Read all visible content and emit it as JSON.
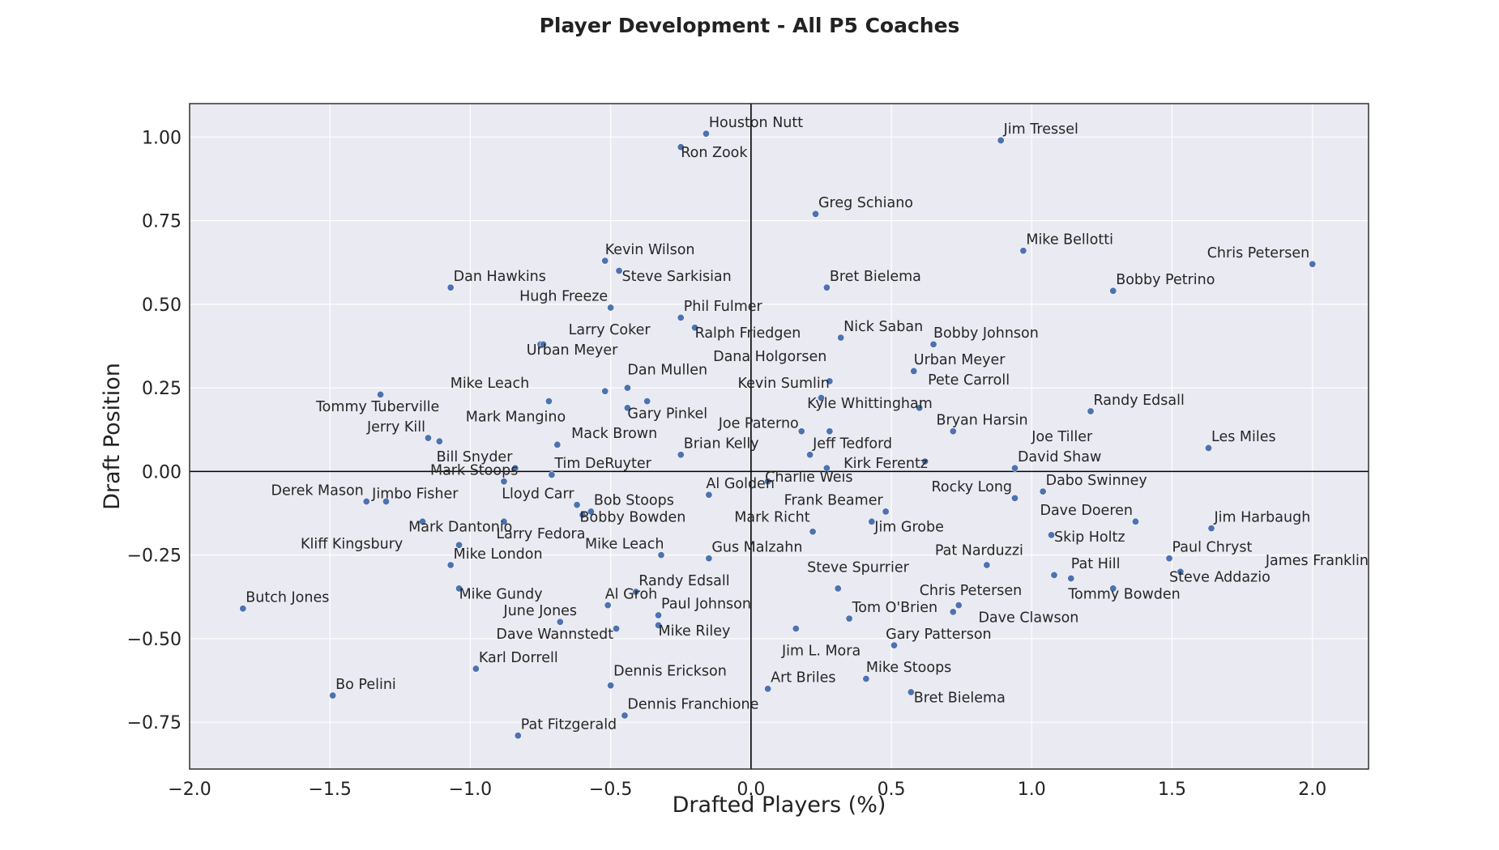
{
  "chart_data": {
    "type": "scatter",
    "title": "Player Development - All P5 Coaches",
    "xlabel": "Drafted Players (%)",
    "ylabel": "Draft Position",
    "xlim": [
      -2.0,
      2.2
    ],
    "ylim": [
      -0.89,
      1.1
    ],
    "xticks": [
      "−2.0",
      "−1.5",
      "−1.0",
      "−0.5",
      "0.0",
      "0.5",
      "1.0",
      "1.5",
      "2.0"
    ],
    "yticks": [
      "−0.75",
      "−0.50",
      "−0.25",
      "0.00",
      "0.25",
      "0.50",
      "0.75",
      "1.00"
    ],
    "grid": true,
    "reference_lines": {
      "x": 0,
      "y": 0
    },
    "background": "#eaeaf2",
    "marker_color": "#4c72b0",
    "points": [
      {
        "name": "Houston Nutt",
        "x": -0.16,
        "y": 1.01
      },
      {
        "name": "Ron Zook",
        "x": -0.25,
        "y": 0.97
      },
      {
        "name": "Jim Tressel",
        "x": 0.89,
        "y": 0.99
      },
      {
        "name": "Greg Schiano",
        "x": 0.23,
        "y": 0.77
      },
      {
        "name": "Mike Bellotti",
        "x": 0.97,
        "y": 0.66
      },
      {
        "name": "Chris Petersen",
        "x": 2.0,
        "y": 0.62
      },
      {
        "name": "Bobby Petrino",
        "x": 1.29,
        "y": 0.54
      },
      {
        "name": "Kevin Wilson",
        "x": -0.52,
        "y": 0.63
      },
      {
        "name": "Steve Sarkisian",
        "x": -0.47,
        "y": 0.6
      },
      {
        "name": "Dan Hawkins",
        "x": -1.07,
        "y": 0.55
      },
      {
        "name": "Bret Bielema",
        "x": 0.27,
        "y": 0.55
      },
      {
        "name": "Hugh Freeze",
        "x": -0.5,
        "y": 0.49
      },
      {
        "name": "Phil Fulmer",
        "x": -0.25,
        "y": 0.46
      },
      {
        "name": "Ralph Friedgen",
        "x": -0.2,
        "y": 0.43
      },
      {
        "name": "Nick Saban",
        "x": 0.32,
        "y": 0.4
      },
      {
        "name": "Bobby Johnson",
        "x": 0.65,
        "y": 0.38
      },
      {
        "name": "Larry Coker",
        "x": -0.75,
        "y": 0.38
      },
      {
        "name": "Urban Meyer",
        "x": -0.74,
        "y": 0.38
      },
      {
        "name": "Urban Meyer",
        "x": 0.58,
        "y": 0.3
      },
      {
        "name": "Dana Holgorsen",
        "x": 0.28,
        "y": 0.27
      },
      {
        "name": "Dan Mullen",
        "x": -0.44,
        "y": 0.25
      },
      {
        "name": "Pete Carroll",
        "x": 0.6,
        "y": 0.19
      },
      {
        "name": "Kevin Sumlin",
        "x": 0.25,
        "y": 0.22
      },
      {
        "name": "Mike Leach",
        "x": -0.72,
        "y": 0.21
      },
      {
        "name": "Tommy Tuberville",
        "x": -1.32,
        "y": 0.23
      },
      {
        "name": "Randy Edsall",
        "x": 1.21,
        "y": 0.18
      },
      {
        "name": "Kyle Whittingham",
        "x": 0.28,
        "y": 0.12
      },
      {
        "name": "Gary Pinkel",
        "x": -0.44,
        "y": 0.19
      },
      {
        "name": "Mark Mangino",
        "x": -0.52,
        "y": 0.24
      },
      {
        "name": "Unlabeled 1",
        "x": -0.37,
        "y": 0.21
      },
      {
        "name": "Joe Paterno",
        "x": 0.18,
        "y": 0.12
      },
      {
        "name": "Bryan Harsin",
        "x": 0.72,
        "y": 0.12
      },
      {
        "name": "Jerry Kill",
        "x": -1.15,
        "y": 0.1
      },
      {
        "name": "Unlabeled 2",
        "x": -1.11,
        "y": 0.09
      },
      {
        "name": "Mack Brown",
        "x": -0.69,
        "y": 0.08
      },
      {
        "name": "Jeff Tedford",
        "x": 0.21,
        "y": 0.05
      },
      {
        "name": "Brian Kelly",
        "x": -0.25,
        "y": 0.05
      },
      {
        "name": "Joe Tiller",
        "x": 0.62,
        "y": 0.03
      },
      {
        "name": "Les Miles",
        "x": 1.63,
        "y": 0.07
      },
      {
        "name": "Bill Snyder",
        "x": -0.84,
        "y": 0.01
      },
      {
        "name": "Tim DeRuyter",
        "x": -0.71,
        "y": -0.01
      },
      {
        "name": "Kirk Ferentz",
        "x": 0.27,
        "y": 0.01
      },
      {
        "name": "David Shaw",
        "x": 0.94,
        "y": 0.01
      },
      {
        "name": "Charlie Weis",
        "x": 0.06,
        "y": -0.03
      },
      {
        "name": "Mark Stoops",
        "x": -0.88,
        "y": -0.03
      },
      {
        "name": "Derek Mason",
        "x": -1.37,
        "y": -0.09
      },
      {
        "name": "Jimbo Fisher",
        "x": -1.3,
        "y": -0.09
      },
      {
        "name": "Lloyd Carr",
        "x": -0.62,
        "y": -0.1
      },
      {
        "name": "Bob Stoops",
        "x": -0.57,
        "y": -0.12
      },
      {
        "name": "Al Golden",
        "x": -0.15,
        "y": -0.07
      },
      {
        "name": "Rocky Long",
        "x": 0.94,
        "y": -0.08
      },
      {
        "name": "Dabo Swinney",
        "x": 1.04,
        "y": -0.06
      },
      {
        "name": "Frank Beamer",
        "x": 0.48,
        "y": -0.12
      },
      {
        "name": "Bobby Bowden",
        "x": -0.6,
        "y": -0.13
      },
      {
        "name": "Dave Doeren",
        "x": 1.37,
        "y": -0.15
      },
      {
        "name": "Jim Grobe",
        "x": 0.43,
        "y": -0.15
      },
      {
        "name": "Mark Dantonio",
        "x": -1.17,
        "y": -0.15
      },
      {
        "name": "Unlabeled 3",
        "x": -0.88,
        "y": -0.15
      },
      {
        "name": "Mark Richt",
        "x": 0.22,
        "y": -0.18
      },
      {
        "name": "Jim Harbaugh",
        "x": 1.64,
        "y": -0.17
      },
      {
        "name": "Skip Holtz",
        "x": 1.07,
        "y": -0.19
      },
      {
        "name": "Larry Fedora",
        "x": -1.04,
        "y": -0.22
      },
      {
        "name": "Kliff Kingsbury",
        "x": -1.07,
        "y": -0.28
      },
      {
        "name": "Mike Leach",
        "x": -0.32,
        "y": -0.25
      },
      {
        "name": "Gus Malzahn",
        "x": -0.15,
        "y": -0.26
      },
      {
        "name": "Paul Chryst",
        "x": 1.49,
        "y": -0.26
      },
      {
        "name": "Pat Narduzzi",
        "x": 0.84,
        "y": -0.28
      },
      {
        "name": "Mike London",
        "x": -1.07,
        "y": -0.28
      },
      {
        "name": "James Franklin",
        "x": 1.53,
        "y": -0.3
      },
      {
        "name": "Pat Hill",
        "x": 1.08,
        "y": -0.31
      },
      {
        "name": "Steve Addazio",
        "x": 1.14,
        "y": -0.32
      },
      {
        "name": "Mike Gundy",
        "x": -1.04,
        "y": -0.35
      },
      {
        "name": "Steve Spurrier",
        "x": 0.31,
        "y": -0.35
      },
      {
        "name": "Tommy Bowden",
        "x": 1.29,
        "y": -0.35
      },
      {
        "name": "Randy Edsall",
        "x": -0.41,
        "y": -0.36
      },
      {
        "name": "Chris Petersen",
        "x": 0.74,
        "y": -0.4
      },
      {
        "name": "Al Groh",
        "x": -0.51,
        "y": -0.4
      },
      {
        "name": "Dave Clawson",
        "x": 0.72,
        "y": -0.42
      },
      {
        "name": "Paul Johnson",
        "x": -0.33,
        "y": -0.43
      },
      {
        "name": "Tom O'Brien",
        "x": 0.35,
        "y": -0.44
      },
      {
        "name": "June Jones",
        "x": -0.68,
        "y": -0.45
      },
      {
        "name": "Mike Riley",
        "x": -0.33,
        "y": -0.46
      },
      {
        "name": "Jim L. Mora",
        "x": 0.16,
        "y": -0.47
      },
      {
        "name": "Dave Wannstedt",
        "x": -0.48,
        "y": -0.47
      },
      {
        "name": "Gary Patterson",
        "x": 0.51,
        "y": -0.52
      },
      {
        "name": "Karl Dorrell",
        "x": -0.98,
        "y": -0.59
      },
      {
        "name": "Mike Stoops",
        "x": 0.41,
        "y": -0.62
      },
      {
        "name": "Dennis Erickson",
        "x": -0.5,
        "y": -0.64
      },
      {
        "name": "Art Briles",
        "x": 0.06,
        "y": -0.65
      },
      {
        "name": "Bret Bielema",
        "x": 0.57,
        "y": -0.66
      },
      {
        "name": "Bo Pelini",
        "x": -1.49,
        "y": -0.67
      },
      {
        "name": "Butch Jones",
        "x": -1.81,
        "y": -0.41
      },
      {
        "name": "Dennis Franchione",
        "x": -0.45,
        "y": -0.73
      },
      {
        "name": "Pat Fitzgerald",
        "x": -0.83,
        "y": -0.79
      }
    ],
    "labels": [
      {
        "text": "Houston Nutt",
        "x": -0.15,
        "y": 1.03,
        "anchor": "start"
      },
      {
        "text": "Ron Zook",
        "x": -0.25,
        "y": 0.94,
        "anchor": "start"
      },
      {
        "text": "Jim Tressel",
        "x": 0.9,
        "y": 1.01,
        "anchor": "start"
      },
      {
        "text": "Greg Schiano",
        "x": 0.24,
        "y": 0.79,
        "anchor": "start"
      },
      {
        "text": "Mike Bellotti",
        "x": 0.98,
        "y": 0.68,
        "anchor": "start"
      },
      {
        "text": "Chris Petersen",
        "x": 1.99,
        "y": 0.64,
        "anchor": "end"
      },
      {
        "text": "Bobby Petrino",
        "x": 1.3,
        "y": 0.56,
        "anchor": "start"
      },
      {
        "text": "Kevin Wilson",
        "x": -0.52,
        "y": 0.65,
        "anchor": "start"
      },
      {
        "text": "Steve Sarkisian",
        "x": -0.46,
        "y": 0.57,
        "anchor": "start"
      },
      {
        "text": "Dan Hawkins",
        "x": -1.06,
        "y": 0.57,
        "anchor": "start"
      },
      {
        "text": "Bret Bielema",
        "x": 0.28,
        "y": 0.57,
        "anchor": "start"
      },
      {
        "text": "Hugh Freeze",
        "x": -0.51,
        "y": 0.51,
        "anchor": "end"
      },
      {
        "text": "Phil Fulmer",
        "x": -0.24,
        "y": 0.48,
        "anchor": "start"
      },
      {
        "text": "Ralph Friedgen",
        "x": -0.2,
        "y": 0.4,
        "anchor": "start"
      },
      {
        "text": "Nick Saban",
        "x": 0.33,
        "y": 0.42,
        "anchor": "start"
      },
      {
        "text": "Bobby Johnson",
        "x": 0.65,
        "y": 0.4,
        "anchor": "start"
      },
      {
        "text": "Larry Coker",
        "x": -0.65,
        "y": 0.41,
        "anchor": "start"
      },
      {
        "text": "Urban Meyer",
        "x": -0.8,
        "y": 0.35,
        "anchor": "start"
      },
      {
        "text": "Urban Meyer",
        "x": 0.58,
        "y": 0.32,
        "anchor": "start"
      },
      {
        "text": "Dana Holgorsen",
        "x": 0.27,
        "y": 0.33,
        "anchor": "end"
      },
      {
        "text": "Dan Mullen",
        "x": -0.44,
        "y": 0.29,
        "anchor": "start"
      },
      {
        "text": "Pete Carroll",
        "x": 0.63,
        "y": 0.26,
        "anchor": "start"
      },
      {
        "text": "Kevin Sumlin",
        "x": 0.28,
        "y": 0.25,
        "anchor": "end"
      },
      {
        "text": "Mike Leach",
        "x": -0.79,
        "y": 0.25,
        "anchor": "end"
      },
      {
        "text": "Tommy Tuberville",
        "x": -1.11,
        "y": 0.18,
        "anchor": "end"
      },
      {
        "text": "Randy Edsall",
        "x": 1.22,
        "y": 0.2,
        "anchor": "start"
      },
      {
        "text": "Kyle Whittingham",
        "x": 0.2,
        "y": 0.19,
        "anchor": "start"
      },
      {
        "text": "Gary Pinkel",
        "x": -0.44,
        "y": 0.16,
        "anchor": "start"
      },
      {
        "text": "Mark Mangino",
        "x": -0.66,
        "y": 0.15,
        "anchor": "end"
      },
      {
        "text": "Joe Paterno",
        "x": 0.17,
        "y": 0.13,
        "anchor": "end"
      },
      {
        "text": "Bryan Harsin",
        "x": 0.66,
        "y": 0.14,
        "anchor": "start"
      },
      {
        "text": "Jerry Kill",
        "x": -1.16,
        "y": 0.12,
        "anchor": "end"
      },
      {
        "text": "Mack Brown",
        "x": -0.64,
        "y": 0.1,
        "anchor": "start"
      },
      {
        "text": "Jeff Tedford",
        "x": 0.22,
        "y": 0.07,
        "anchor": "start"
      },
      {
        "text": "Brian Kelly",
        "x": -0.24,
        "y": 0.07,
        "anchor": "start"
      },
      {
        "text": "Joe Tiller",
        "x": 1.0,
        "y": 0.09,
        "anchor": "start"
      },
      {
        "text": "Les Miles",
        "x": 1.64,
        "y": 0.09,
        "anchor": "start"
      },
      {
        "text": "Bill Snyder",
        "x": -0.85,
        "y": 0.03,
        "anchor": "end"
      },
      {
        "text": "Tim DeRuyter",
        "x": -0.7,
        "y": 0.01,
        "anchor": "start"
      },
      {
        "text": "Kirk Ferentz",
        "x": 0.33,
        "y": 0.01,
        "anchor": "start"
      },
      {
        "text": "David Shaw",
        "x": 0.95,
        "y": 0.03,
        "anchor": "start"
      },
      {
        "text": "Charlie Weis",
        "x": 0.05,
        "y": -0.03,
        "anchor": "start"
      },
      {
        "text": "Mark Stoops",
        "x": -0.83,
        "y": -0.01,
        "anchor": "end"
      },
      {
        "text": "Derek Mason",
        "x": -1.38,
        "y": -0.07,
        "anchor": "end"
      },
      {
        "text": "Jimbo Fisher",
        "x": -1.35,
        "y": -0.08,
        "anchor": "start"
      },
      {
        "text": "Lloyd Carr",
        "x": -0.63,
        "y": -0.08,
        "anchor": "end"
      },
      {
        "text": "Bob Stoops",
        "x": -0.56,
        "y": -0.1,
        "anchor": "start"
      },
      {
        "text": "Al Golden",
        "x": -0.16,
        "y": -0.05,
        "anchor": "start"
      },
      {
        "text": "Rocky Long",
        "x": 0.93,
        "y": -0.06,
        "anchor": "end"
      },
      {
        "text": "Dabo Swinney",
        "x": 1.05,
        "y": -0.04,
        "anchor": "start"
      },
      {
        "text": "Frank Beamer",
        "x": 0.47,
        "y": -0.1,
        "anchor": "end"
      },
      {
        "text": "Bobby Bowden",
        "x": -0.61,
        "y": -0.15,
        "anchor": "start"
      },
      {
        "text": "Dave Doeren",
        "x": 1.36,
        "y": -0.13,
        "anchor": "end"
      },
      {
        "text": "Jim Grobe",
        "x": 0.44,
        "y": -0.18,
        "anchor": "start"
      },
      {
        "text": "Mark Dantonio",
        "x": -0.85,
        "y": -0.18,
        "anchor": "end"
      },
      {
        "text": "Mark Richt",
        "x": 0.21,
        "y": -0.15,
        "anchor": "end"
      },
      {
        "text": "Jim Harbaugh",
        "x": 1.65,
        "y": -0.15,
        "anchor": "start"
      },
      {
        "text": "Skip Holtz",
        "x": 1.08,
        "y": -0.21,
        "anchor": "start"
      },
      {
        "text": "Larry Fedora",
        "x": -0.59,
        "y": -0.2,
        "anchor": "end"
      },
      {
        "text": "Kliff Kingsbury",
        "x": -1.24,
        "y": -0.23,
        "anchor": "end"
      },
      {
        "text": "Mike Leach",
        "x": -0.31,
        "y": -0.23,
        "anchor": "end"
      },
      {
        "text": "Gus Malzahn",
        "x": -0.14,
        "y": -0.24,
        "anchor": "start"
      },
      {
        "text": "Paul Chryst",
        "x": 1.5,
        "y": -0.24,
        "anchor": "start"
      },
      {
        "text": "Pat Narduzzi",
        "x": 0.97,
        "y": -0.25,
        "anchor": "end"
      },
      {
        "text": "Mike London",
        "x": -1.06,
        "y": -0.26,
        "anchor": "start"
      },
      {
        "text": "James Franklin",
        "x": 2.2,
        "y": -0.28,
        "anchor": "end"
      },
      {
        "text": "Pat Hill",
        "x": 1.14,
        "y": -0.29,
        "anchor": "start"
      },
      {
        "text": "Steve Addazio",
        "x": 1.49,
        "y": -0.33,
        "anchor": "start"
      },
      {
        "text": "Mike Gundy",
        "x": -1.04,
        "y": -0.38,
        "anchor": "start"
      },
      {
        "text": "Steve Spurrier",
        "x": 0.2,
        "y": -0.3,
        "anchor": "start"
      },
      {
        "text": "Tommy Bowden",
        "x": 1.13,
        "y": -0.38,
        "anchor": "start"
      },
      {
        "text": "Randy Edsall",
        "x": -0.4,
        "y": -0.34,
        "anchor": "start"
      },
      {
        "text": "Chris Petersen",
        "x": 0.6,
        "y": -0.37,
        "anchor": "start"
      },
      {
        "text": "Al Groh",
        "x": -0.52,
        "y": -0.38,
        "anchor": "start"
      },
      {
        "text": "Dave Clawson",
        "x": 0.81,
        "y": -0.45,
        "anchor": "start"
      },
      {
        "text": "Paul Johnson",
        "x": -0.32,
        "y": -0.41,
        "anchor": "start"
      },
      {
        "text": "Tom O'Brien",
        "x": 0.36,
        "y": -0.42,
        "anchor": "start"
      },
      {
        "text": "June Jones",
        "x": -0.62,
        "y": -0.43,
        "anchor": "end"
      },
      {
        "text": "Mike Riley",
        "x": -0.33,
        "y": -0.49,
        "anchor": "start"
      },
      {
        "text": "Jim L. Mora",
        "x": 0.11,
        "y": -0.55,
        "anchor": "start"
      },
      {
        "text": "Dave Wannstedt",
        "x": -0.49,
        "y": -0.5,
        "anchor": "end"
      },
      {
        "text": "Gary Patterson",
        "x": 0.48,
        "y": -0.5,
        "anchor": "start"
      },
      {
        "text": "Karl Dorrell",
        "x": -0.97,
        "y": -0.57,
        "anchor": "start"
      },
      {
        "text": "Mike Stoops",
        "x": 0.41,
        "y": -0.6,
        "anchor": "start"
      },
      {
        "text": "Dennis Erickson",
        "x": -0.49,
        "y": -0.61,
        "anchor": "start"
      },
      {
        "text": "Art Briles",
        "x": 0.07,
        "y": -0.63,
        "anchor": "start"
      },
      {
        "text": "Bret Bielema",
        "x": 0.58,
        "y": -0.69,
        "anchor": "start"
      },
      {
        "text": "Bo Pelini",
        "x": -1.48,
        "y": -0.65,
        "anchor": "start"
      },
      {
        "text": "Butch Jones",
        "x": -1.8,
        "y": -0.39,
        "anchor": "start"
      },
      {
        "text": "Dennis Franchione",
        "x": -0.44,
        "y": -0.71,
        "anchor": "start"
      },
      {
        "text": "Pat Fitzgerald",
        "x": -0.82,
        "y": -0.77,
        "anchor": "start"
      }
    ]
  }
}
